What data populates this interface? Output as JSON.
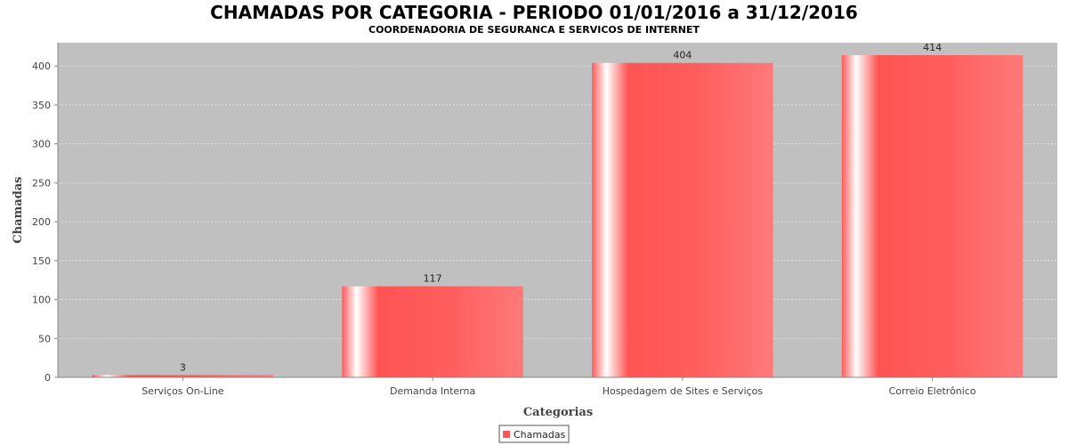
{
  "chart_data": {
    "type": "bar",
    "title": "CHAMADAS POR CATEGORIA - PERIODO 01/01/2016 a 31/12/2016",
    "subtitle": "COORDENADORIA DE SEGURANCA E SERVICOS DE INTERNET",
    "xlabel": "Categorias",
    "ylabel": "Chamadas",
    "categories": [
      "Serviços On-Line",
      "Demanda Interna",
      "Hospedagem de Sites e Serviços",
      "Correio Eletrônico"
    ],
    "series": [
      {
        "name": "Chamadas",
        "values": [
          3,
          117,
          404,
          414
        ]
      }
    ],
    "value_labels": [
      "3",
      "117",
      "404",
      "414"
    ],
    "ylim": [
      0,
      430
    ],
    "yticks": [
      0,
      50,
      100,
      150,
      200,
      250,
      300,
      350,
      400
    ],
    "grid": true,
    "legend": "bottom-center",
    "colors": {
      "bar": "#ff5555",
      "bar_highlight": "#ffffff",
      "plot_background": "#c0c0c0",
      "grid": "#e6e6e6"
    }
  }
}
